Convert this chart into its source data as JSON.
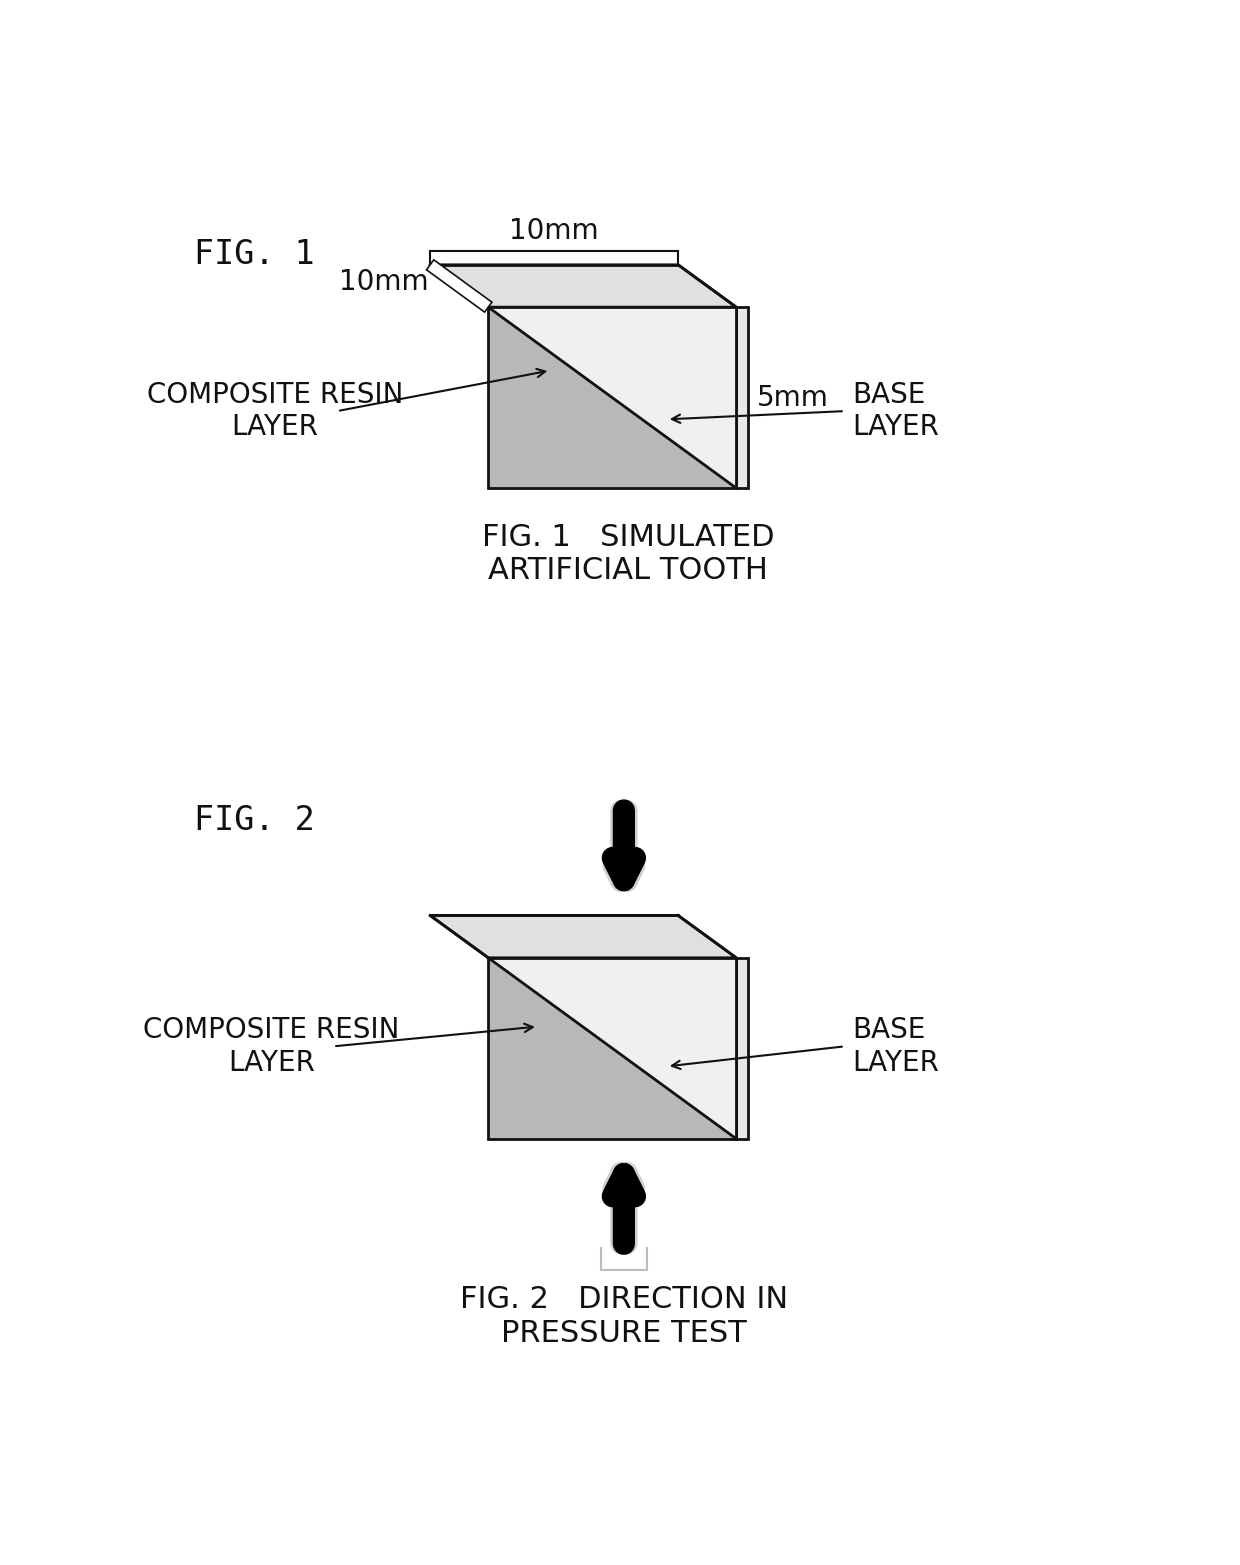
{
  "bg_color": "#ffffff",
  "fig1_label": "FIG. 1",
  "fig2_label": "FIG. 2",
  "fig1_caption": "FIG. 1   SIMULATED\nARTIFICIAL TOOTH",
  "fig2_caption": "FIG. 2   DIRECTION IN\nPRESSURE TEST",
  "composite_resin_label": "COMPOSITE RESIN\nLAYER",
  "base_layer_label": "BASE\nLAYER",
  "dim_10mm_top": "10mm",
  "dim_10mm_side": "10mm",
  "dim_5mm": "5mm",
  "edge_color": "#111111",
  "face_light": "#f0f0f0",
  "face_dark": "#aaaaaa",
  "face_top": "#e0e0e0",
  "face_right": "#d0d0d0",
  "text_color": "#111111",
  "stipple_color": "#b8b8b8"
}
